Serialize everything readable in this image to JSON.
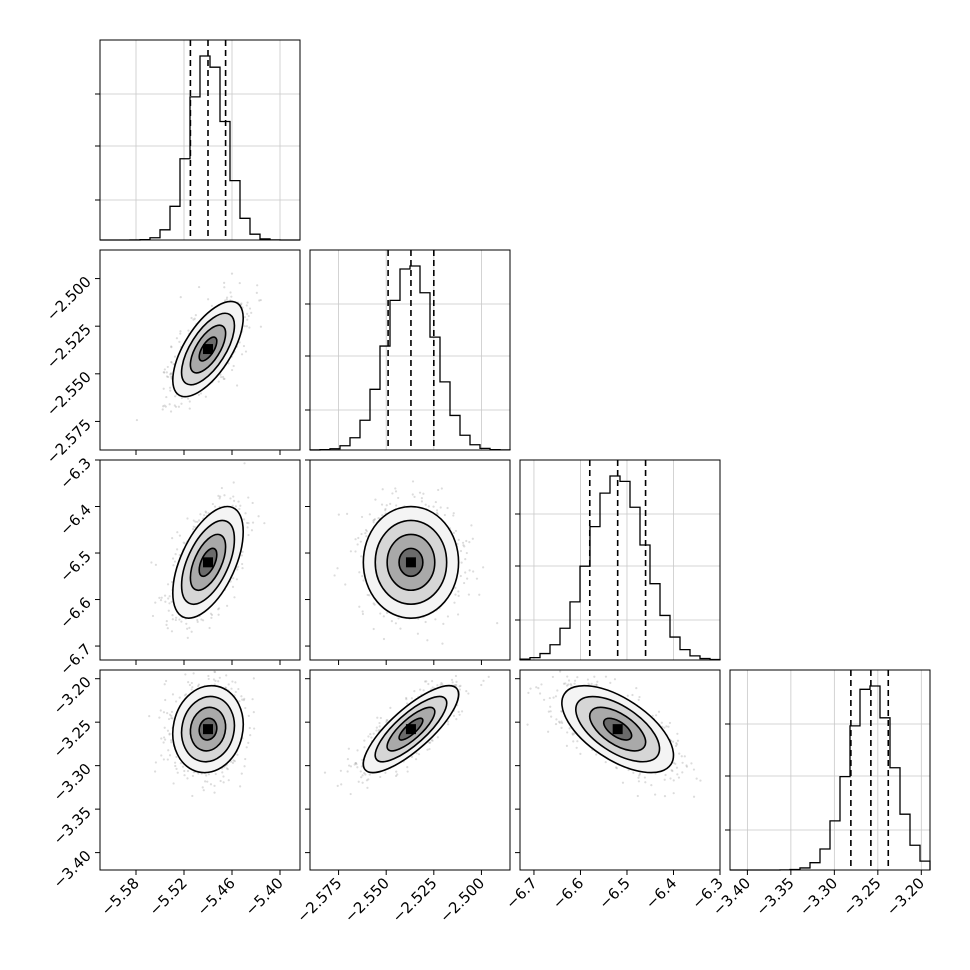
{
  "chart_data": {
    "type": "corner",
    "ndim": 4,
    "grid": true,
    "colors": {
      "ink": "#000000",
      "gridline": "#c8c8c8",
      "scatter": "#9a9a9a"
    },
    "parameters": [
      {
        "range": [
          -5.625,
          -5.375
        ],
        "ticks": [
          -5.58,
          -5.52,
          -5.46,
          -5.4
        ],
        "tick_labels": [
          "−5.58",
          "−5.52",
          "−5.46",
          "−5.40"
        ],
        "mean": -5.49,
        "std": 0.022,
        "quantiles": [
          -5.512,
          -5.49,
          -5.468
        ]
      },
      {
        "range": [
          -2.59,
          -2.485
        ],
        "ticks": [
          -2.575,
          -2.55,
          -2.525,
          -2.5
        ],
        "tick_labels": [
          "−2.575",
          "−2.550",
          "−2.525",
          "−2.500"
        ],
        "mean": -2.537,
        "std": 0.0125,
        "quantiles": [
          -2.549,
          -2.537,
          -2.525
        ]
      },
      {
        "range": [
          -6.73,
          -6.3
        ],
        "ticks": [
          -6.7,
          -6.6,
          -6.5,
          -6.4,
          -6.3
        ],
        "tick_labels": [
          "−6.7",
          "−6.6",
          "−6.5",
          "−6.4",
          "−6.3"
        ],
        "mean": -6.52,
        "std": 0.06,
        "quantiles": [
          -6.58,
          -6.52,
          -6.46
        ]
      },
      {
        "range": [
          -3.42,
          -3.19
        ],
        "ticks": [
          -3.4,
          -3.35,
          -3.3,
          -3.25,
          -3.2
        ],
        "tick_labels": [
          "−3.40",
          "−3.35",
          "−3.30",
          "−3.25",
          "−3.20"
        ],
        "mean": -3.258,
        "std": 0.025,
        "quantiles": [
          -3.281,
          -3.258,
          -3.238
        ]
      }
    ],
    "correlations": [
      {
        "i": 1,
        "j": 0,
        "rho": 0.65
      },
      {
        "i": 2,
        "j": 0,
        "rho": 0.55
      },
      {
        "i": 2,
        "j": 1,
        "rho": 0.0
      },
      {
        "i": 3,
        "j": 0,
        "rho": 0.1
      },
      {
        "i": 3,
        "j": 1,
        "rho": 0.8
      },
      {
        "i": 3,
        "j": 2,
        "rho": -0.6
      }
    ],
    "contour_sigma_levels": [
      0.5,
      1.0,
      1.5,
      2.0
    ],
    "n_bins": 20
  }
}
